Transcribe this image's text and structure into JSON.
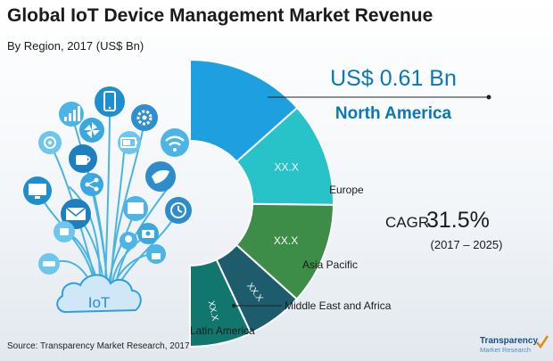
{
  "header": {
    "title": "Global IoT Device Management Market Revenue",
    "subtitle": "By Region, 2017 (US$ Bn)"
  },
  "highlight": {
    "value": "US$ 0.61 Bn",
    "region": "North America"
  },
  "cagr": {
    "label": "CAGR",
    "value": "31.5%",
    "period": "(2017 – 2025)"
  },
  "illustration": {
    "label": "IoT"
  },
  "chart_data": {
    "type": "pie",
    "variant": "half-donut (right half)",
    "categories": [
      "North America",
      "Europe",
      "Asia Pacific",
      "Middle East and Africa",
      "Latin America"
    ],
    "values": [
      0.61,
      null,
      null,
      null,
      null
    ],
    "slice_shares": [
      0.2683,
      0.2354,
      0.2293,
      0.1275,
      0.1395
    ],
    "slice_labels": [
      "",
      "XX.X",
      "XX.X",
      "XX.X",
      "XX.X"
    ],
    "colors": [
      "#1e9fdf",
      "#27c3c9",
      "#3d8c47",
      "#1c5c6c",
      "#11776e"
    ]
  },
  "footer": {
    "source": "Source: Transparency Market Research, 2017",
    "brand_name": "Transparency",
    "brand_sub": "Market Research"
  }
}
